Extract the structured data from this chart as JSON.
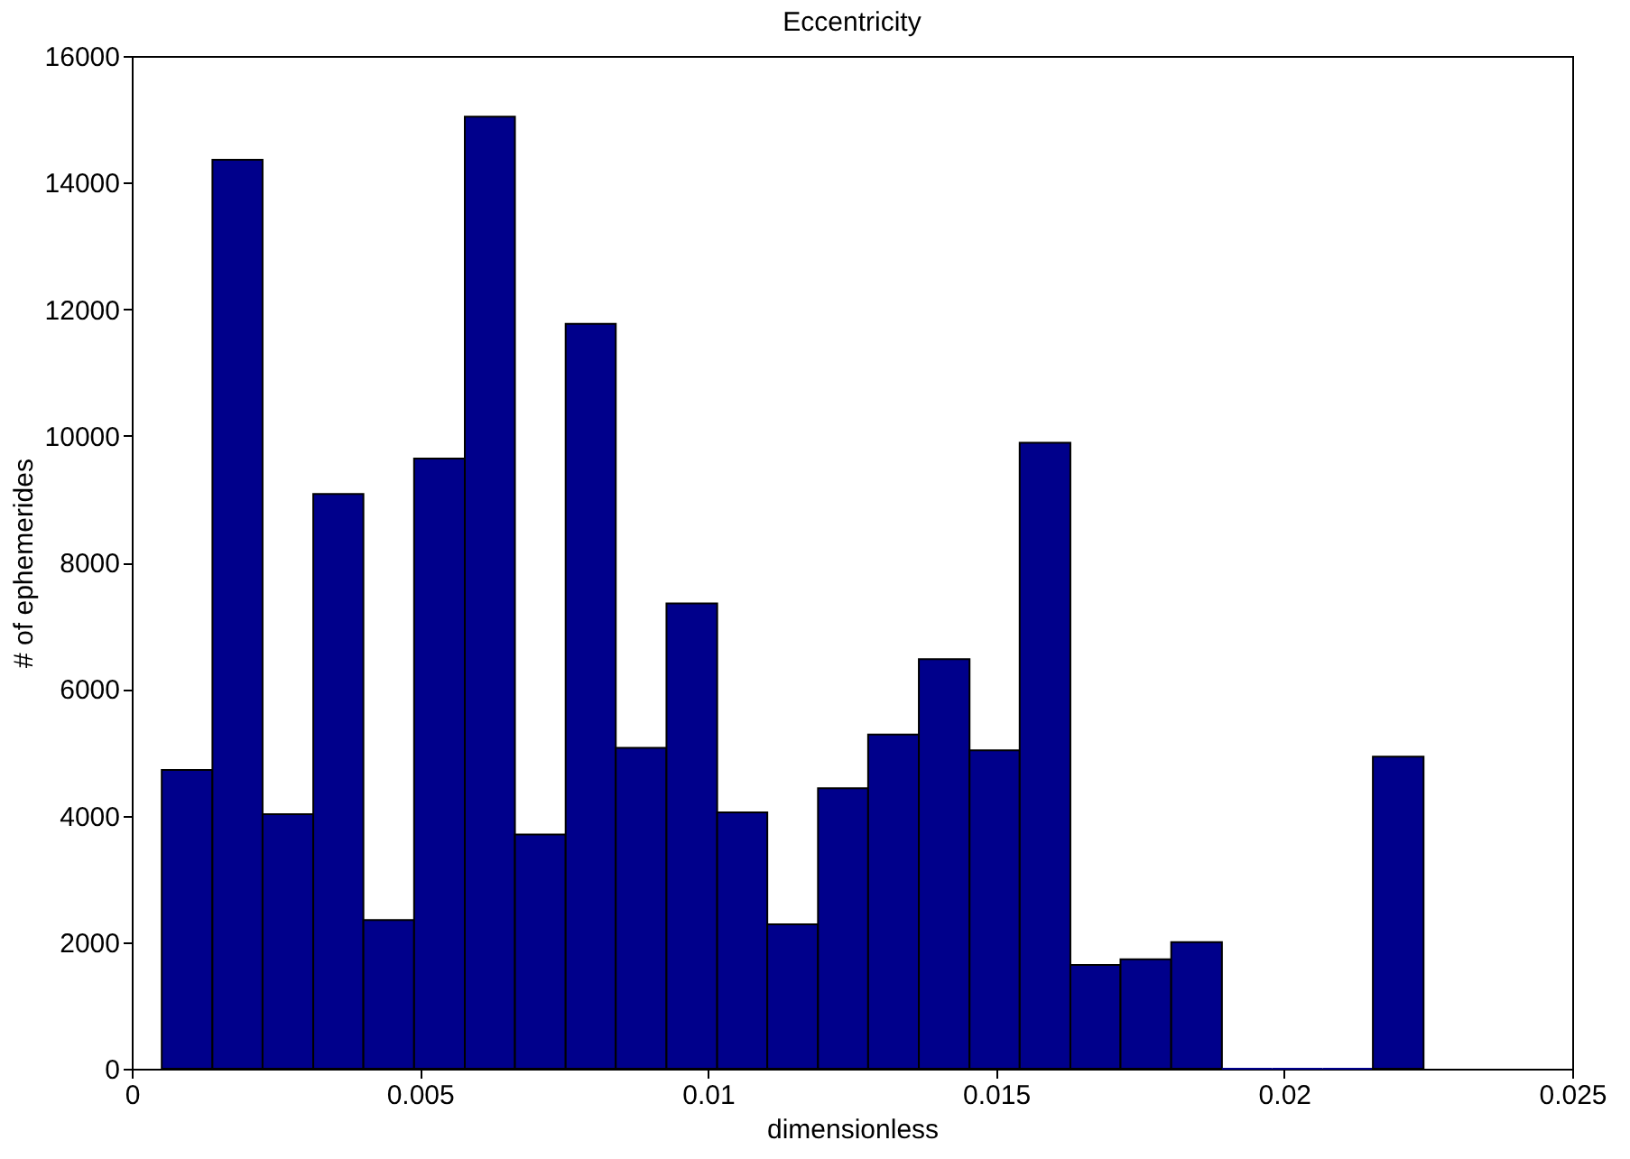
{
  "chart_data": {
    "type": "histogram",
    "title": "Eccentricity",
    "xlabel": "dimensionless",
    "ylabel": "# of ephemerides",
    "bins": [
      0.00052,
      0.0014,
      0.00227,
      0.00315,
      0.00402,
      0.0049,
      0.00578,
      0.00665,
      0.00753,
      0.0084,
      0.00928,
      0.01016,
      0.01103,
      0.01191,
      0.01278,
      0.01366,
      0.01454,
      0.01541,
      0.01629,
      0.01716,
      0.01804,
      0.01892,
      0.01979,
      0.02067,
      0.02154,
      0.02242
    ],
    "values": [
      4720,
      14360,
      4020,
      9080,
      2350,
      9640,
      15040,
      3700,
      11770,
      5070,
      7350,
      4050,
      2280,
      4430,
      5280,
      6470,
      5030,
      9890,
      1640,
      1730,
      2000,
      0,
      0,
      0,
      4930
    ],
    "color": "#00008b",
    "xlim": [
      0,
      0.025
    ],
    "xticks": [
      0,
      0.005,
      0.01,
      0.015,
      0.02,
      0.025
    ],
    "ylim": [
      0,
      16000
    ],
    "yticks": [
      0,
      2000,
      4000,
      6000,
      8000,
      10000,
      12000,
      14000,
      16000
    ],
    "grid": false
  }
}
